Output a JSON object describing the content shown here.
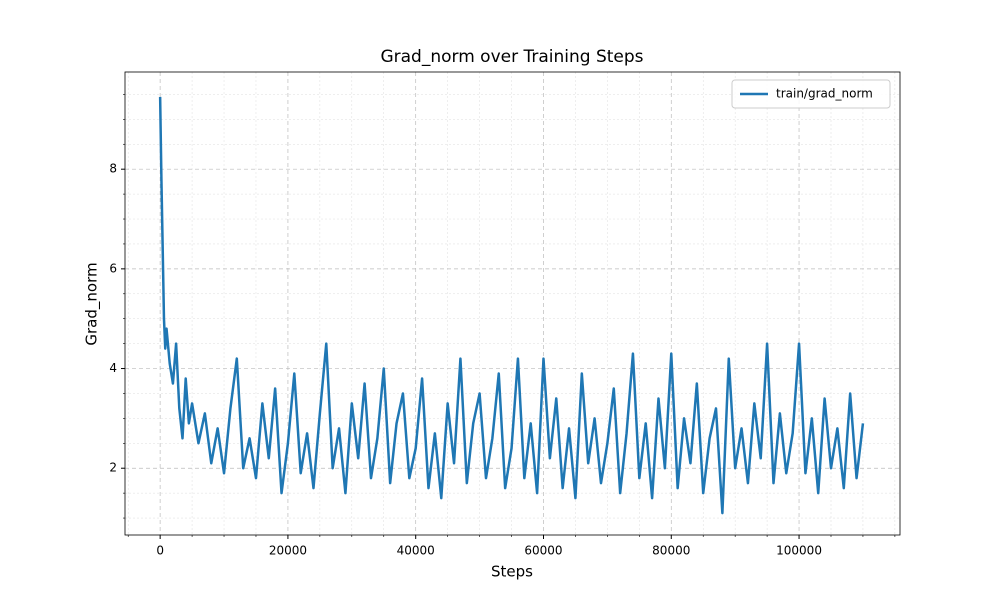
{
  "chart_data": {
    "type": "line",
    "title": "Grad_norm over Training Steps",
    "xlabel": "Steps",
    "ylabel": "Grad_norm",
    "x": [
      0,
      200,
      400,
      600,
      800,
      1000,
      1500,
      2000,
      2500,
      3000,
      3500,
      4000,
      4500,
      5000,
      6000,
      7000,
      8000,
      9000,
      10000,
      11000,
      12000,
      13000,
      14000,
      15000,
      16000,
      17000,
      18000,
      19000,
      20000,
      21000,
      22000,
      23000,
      24000,
      25000,
      26000,
      27000,
      28000,
      29000,
      30000,
      31000,
      32000,
      33000,
      34000,
      35000,
      36000,
      37000,
      38000,
      39000,
      40000,
      41000,
      42000,
      43000,
      44000,
      45000,
      46000,
      47000,
      48000,
      49000,
      50000,
      51000,
      52000,
      53000,
      54000,
      55000,
      56000,
      57000,
      58000,
      59000,
      60000,
      61000,
      62000,
      63000,
      64000,
      65000,
      66000,
      67000,
      68000,
      69000,
      70000,
      71000,
      72000,
      73000,
      74000,
      75000,
      76000,
      77000,
      78000,
      79000,
      80000,
      81000,
      82000,
      83000,
      84000,
      85000,
      86000,
      87000,
      88000,
      89000,
      90000,
      91000,
      92000,
      93000,
      94000,
      95000,
      96000,
      97000,
      98000,
      99000,
      100000,
      101000,
      102000,
      103000,
      104000,
      105000,
      106000,
      107000,
      108000,
      109000,
      110000
    ],
    "series": [
      {
        "name": "train/grad_norm",
        "color": "#1f77b4",
        "values": [
          9.45,
          7.8,
          6.4,
          5.0,
          4.4,
          4.8,
          4.1,
          3.7,
          4.5,
          3.2,
          2.6,
          3.8,
          2.9,
          3.3,
          2.5,
          3.1,
          2.1,
          2.8,
          1.9,
          3.2,
          4.2,
          2.0,
          2.6,
          1.8,
          3.3,
          2.2,
          3.6,
          1.5,
          2.5,
          3.9,
          1.9,
          2.7,
          1.6,
          3.1,
          4.5,
          2.0,
          2.8,
          1.5,
          3.3,
          2.2,
          3.7,
          1.8,
          2.6,
          4.0,
          1.7,
          2.9,
          3.5,
          1.8,
          2.4,
          3.8,
          1.6,
          2.7,
          1.4,
          3.3,
          2.1,
          4.2,
          1.7,
          2.9,
          3.5,
          1.8,
          2.6,
          3.9,
          1.6,
          2.4,
          4.2,
          1.8,
          2.9,
          1.5,
          4.2,
          2.2,
          3.4,
          1.6,
          2.8,
          1.4,
          3.9,
          2.1,
          3.0,
          1.7,
          2.5,
          3.6,
          1.5,
          2.7,
          4.3,
          1.8,
          2.9,
          1.4,
          3.4,
          2.0,
          4.3,
          1.6,
          3.0,
          2.1,
          3.7,
          1.5,
          2.6,
          3.2,
          1.1,
          4.2,
          2.0,
          2.8,
          1.7,
          3.3,
          2.2,
          4.5,
          1.7,
          3.1,
          1.9,
          2.7,
          4.5,
          1.9,
          3.0,
          1.5,
          3.4,
          2.0,
          2.8,
          1.6,
          3.5,
          1.8,
          2.9
        ]
      }
    ],
    "xlim": [
      -5500,
      115800
    ],
    "ylim": [
      0.66,
      9.95
    ],
    "xticks": [
      0,
      20000,
      40000,
      60000,
      80000,
      100000
    ],
    "yticks": [
      2,
      4,
      6,
      8
    ],
    "xminorticks": [
      -5000,
      5000,
      10000,
      15000,
      25000,
      30000,
      35000,
      45000,
      50000,
      55000,
      65000,
      70000,
      75000,
      85000,
      90000,
      95000,
      105000,
      110000,
      115000
    ],
    "yminorticks": [
      1,
      1.5,
      2.5,
      3,
      3.5,
      4.5,
      5,
      5.5,
      6.5,
      7,
      7.5,
      8.5,
      9,
      9.5
    ],
    "grid": true,
    "legend": "upper-right"
  }
}
